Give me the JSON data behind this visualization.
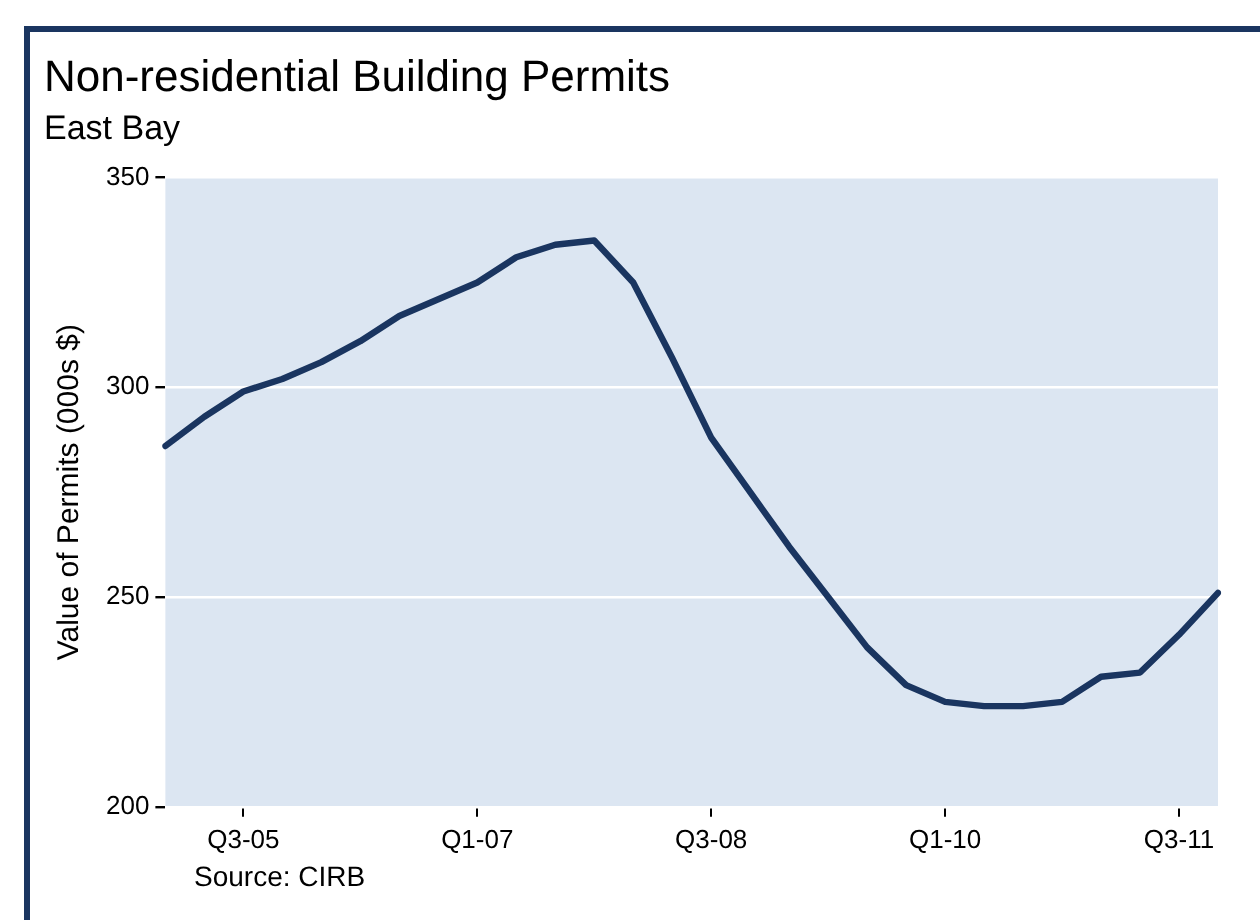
{
  "chart_data": {
    "type": "line",
    "title": "Non-residential Building Permits",
    "subtitle": "East Bay",
    "ylabel": "Value of Permits (000s $)",
    "annotations": [
      "Source: CIRB"
    ],
    "categories": [
      null,
      null,
      "Q3-05",
      null,
      null,
      null,
      null,
      null,
      "Q1-07",
      null,
      null,
      null,
      null,
      null,
      "Q3-08",
      null,
      null,
      null,
      null,
      null,
      "Q1-10",
      null,
      null,
      null,
      null,
      null,
      "Q3-11",
      null
    ],
    "series": [
      {
        "color": "#1a3560",
        "values": [
          286,
          293,
          299,
          302,
          306,
          311,
          317,
          321,
          325,
          331,
          334,
          335,
          325,
          307,
          288,
          275,
          262,
          250,
          238,
          229,
          225,
          224,
          224,
          225,
          231,
          232,
          241,
          251
        ]
      }
    ],
    "ylim": [
      200,
      350
    ],
    "yticks": [
      200,
      250,
      300,
      350
    ],
    "grid": "y",
    "marker": "none",
    "line_style": "solid",
    "legend": false
  }
}
